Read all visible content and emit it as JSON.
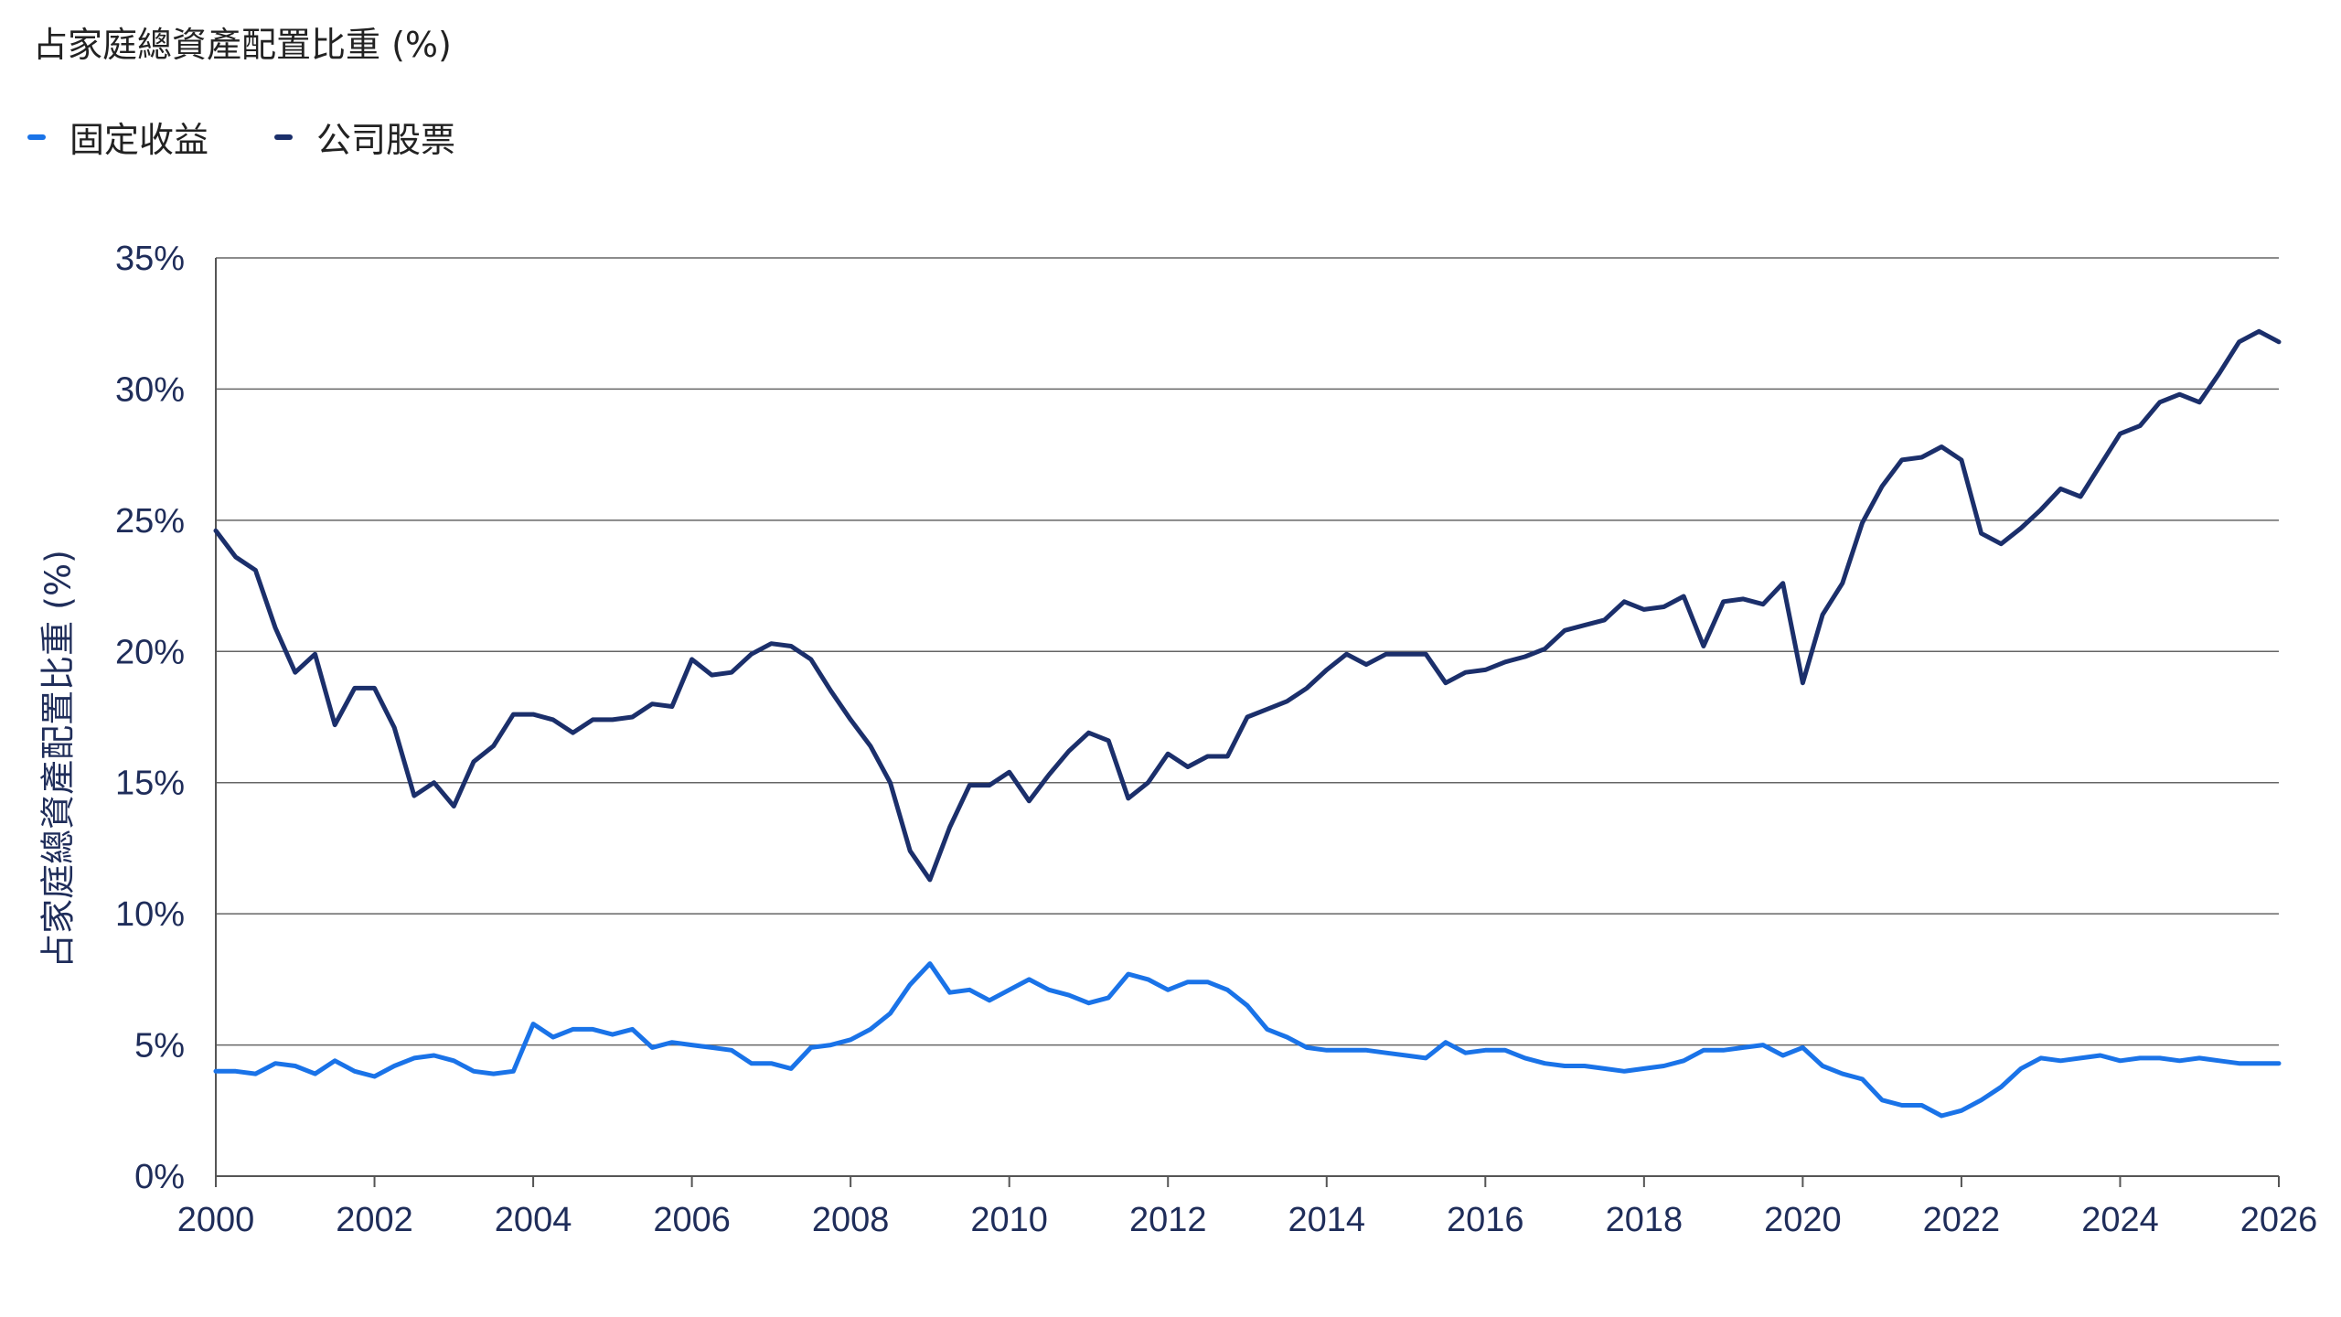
{
  "title": "占家庭總資產配置比重 (%)",
  "legend": [
    {
      "label": "固定收益",
      "color": "#1a73e8"
    },
    {
      "label": "公司股票",
      "color": "#1b2f6b"
    }
  ],
  "chart_data": {
    "type": "line",
    "title": "占家庭總資產配置比重 (%)",
    "xlabel": "",
    "ylabel": "占家庭總資產配置比重 (%)",
    "xlim": [
      2000,
      2026
    ],
    "ylim": [
      0,
      35
    ],
    "xticks": [
      2000,
      2002,
      2004,
      2006,
      2008,
      2010,
      2012,
      2014,
      2016,
      2018,
      2020,
      2022,
      2024,
      2026
    ],
    "xtick_labels": [
      "2000",
      "2002",
      "2004",
      "2006",
      "2008",
      "2010",
      "2012",
      "2014",
      "2016",
      "2018",
      "2020",
      "2022",
      "2024",
      "2026"
    ],
    "yticks": [
      0,
      5,
      10,
      15,
      20,
      25,
      30,
      35
    ],
    "ytick_labels": [
      "0%",
      "5%",
      "10%",
      "15%",
      "20%",
      "25%",
      "30%",
      "35%"
    ],
    "grid": "horizontal",
    "legend_position": "top-left",
    "series": [
      {
        "name": "公司股票",
        "color": "#1b2f6b",
        "x": [
          2000.0,
          2000.25,
          2000.5,
          2000.75,
          2001.0,
          2001.25,
          2001.5,
          2001.75,
          2002.0,
          2002.25,
          2002.5,
          2002.75,
          2003.0,
          2003.25,
          2003.5,
          2003.75,
          2004.0,
          2004.25,
          2004.5,
          2004.75,
          2005.0,
          2005.25,
          2005.5,
          2005.75,
          2006.0,
          2006.25,
          2006.5,
          2006.75,
          2007.0,
          2007.25,
          2007.5,
          2007.75,
          2008.0,
          2008.25,
          2008.5,
          2008.75,
          2009.0,
          2009.25,
          2009.5,
          2009.75,
          2010.0,
          2010.25,
          2010.5,
          2010.75,
          2011.0,
          2011.25,
          2011.5,
          2011.75,
          2012.0,
          2012.25,
          2012.5,
          2012.75,
          2013.0,
          2013.25,
          2013.5,
          2013.75,
          2014.0,
          2014.25,
          2014.5,
          2014.75,
          2015.0,
          2015.25,
          2015.5,
          2015.75,
          2016.0,
          2016.25,
          2016.5,
          2016.75,
          2017.0,
          2017.25,
          2017.5,
          2017.75,
          2018.0,
          2018.25,
          2018.5,
          2018.75,
          2019.0,
          2019.25,
          2019.5,
          2019.75,
          2020.0,
          2020.25,
          2020.5,
          2020.75,
          2021.0,
          2021.25,
          2021.5,
          2021.75,
          2022.0,
          2022.25,
          2022.5,
          2022.75,
          2023.0,
          2023.25,
          2023.5,
          2023.75,
          2024.0,
          2024.25,
          2024.5,
          2024.75,
          2025.0,
          2025.25,
          2025.5,
          2025.75,
          2026.0
        ],
        "values": [
          24.6,
          23.6,
          23.1,
          20.9,
          19.2,
          19.9,
          17.2,
          18.6,
          18.6,
          17.1,
          14.5,
          15.0,
          14.1,
          15.8,
          16.4,
          17.6,
          17.6,
          17.4,
          16.9,
          17.4,
          17.4,
          17.5,
          18.0,
          17.9,
          19.7,
          19.1,
          19.2,
          19.9,
          20.3,
          20.2,
          19.7,
          18.5,
          17.4,
          16.4,
          15.0,
          12.4,
          11.3,
          13.3,
          14.9,
          14.9,
          15.4,
          14.3,
          15.3,
          16.2,
          16.9,
          16.6,
          14.4,
          15.0,
          16.1,
          15.6,
          16.0,
          16.0,
          17.5,
          17.8,
          18.1,
          18.6,
          19.3,
          19.9,
          19.5,
          19.9,
          19.9,
          19.9,
          18.8,
          19.2,
          19.3,
          19.6,
          19.8,
          20.1,
          20.8,
          21.0,
          21.2,
          21.9,
          21.6,
          21.7,
          22.1,
          20.2,
          21.9,
          22.0,
          21.8,
          22.6,
          18.8,
          21.4,
          22.6,
          24.9,
          26.3,
          27.3,
          27.4,
          27.8,
          27.3,
          24.5,
          24.1,
          24.7,
          25.4,
          26.2,
          25.9,
          27.1,
          28.3,
          28.6,
          29.5,
          29.8,
          29.5,
          30.6,
          31.8,
          32.2,
          31.8
        ]
      },
      {
        "name": "固定收益",
        "color": "#1a73e8",
        "x": [
          2000.0,
          2000.25,
          2000.5,
          2000.75,
          2001.0,
          2001.25,
          2001.5,
          2001.75,
          2002.0,
          2002.25,
          2002.5,
          2002.75,
          2003.0,
          2003.25,
          2003.5,
          2003.75,
          2004.0,
          2004.25,
          2004.5,
          2004.75,
          2005.0,
          2005.25,
          2005.5,
          2005.75,
          2006.0,
          2006.25,
          2006.5,
          2006.75,
          2007.0,
          2007.25,
          2007.5,
          2007.75,
          2008.0,
          2008.25,
          2008.5,
          2008.75,
          2009.0,
          2009.25,
          2009.5,
          2009.75,
          2010.0,
          2010.25,
          2010.5,
          2010.75,
          2011.0,
          2011.25,
          2011.5,
          2011.75,
          2012.0,
          2012.25,
          2012.5,
          2012.75,
          2013.0,
          2013.25,
          2013.5,
          2013.75,
          2014.0,
          2014.25,
          2014.5,
          2014.75,
          2015.0,
          2015.25,
          2015.5,
          2015.75,
          2016.0,
          2016.25,
          2016.5,
          2016.75,
          2017.0,
          2017.25,
          2017.5,
          2017.75,
          2018.0,
          2018.25,
          2018.5,
          2018.75,
          2019.0,
          2019.25,
          2019.5,
          2019.75,
          2020.0,
          2020.25,
          2020.5,
          2020.75,
          2021.0,
          2021.25,
          2021.5,
          2021.75,
          2022.0,
          2022.25,
          2022.5,
          2022.75,
          2023.0,
          2023.25,
          2023.5,
          2023.75,
          2024.0,
          2024.25,
          2024.5,
          2024.75,
          2025.0,
          2025.25,
          2025.5,
          2025.75,
          2026.0
        ],
        "values": [
          4.0,
          4.0,
          3.9,
          4.3,
          4.2,
          3.9,
          4.4,
          4.0,
          3.8,
          4.2,
          4.5,
          4.6,
          4.4,
          4.0,
          3.9,
          4.0,
          5.8,
          5.3,
          5.6,
          5.6,
          5.4,
          5.6,
          4.9,
          5.1,
          5.0,
          4.9,
          4.8,
          4.3,
          4.3,
          4.1,
          4.9,
          5.0,
          5.2,
          5.6,
          6.2,
          7.3,
          8.1,
          7.0,
          7.1,
          6.7,
          7.1,
          7.5,
          7.1,
          6.9,
          6.6,
          6.8,
          7.7,
          7.5,
          7.1,
          7.4,
          7.4,
          7.1,
          6.5,
          5.6,
          5.3,
          4.9,
          4.8,
          4.8,
          4.8,
          4.7,
          4.6,
          4.5,
          5.1,
          4.7,
          4.8,
          4.8,
          4.5,
          4.3,
          4.2,
          4.2,
          4.1,
          4.0,
          4.1,
          4.2,
          4.4,
          4.8,
          4.8,
          4.9,
          5.0,
          4.6,
          4.9,
          4.2,
          3.9,
          3.7,
          2.9,
          2.7,
          2.7,
          2.3,
          2.5,
          2.9,
          3.4,
          4.1,
          4.5,
          4.4,
          4.5,
          4.6,
          4.4,
          4.5,
          4.5,
          4.4,
          4.5,
          4.4,
          4.3,
          4.3,
          4.3
        ]
      }
    ]
  }
}
